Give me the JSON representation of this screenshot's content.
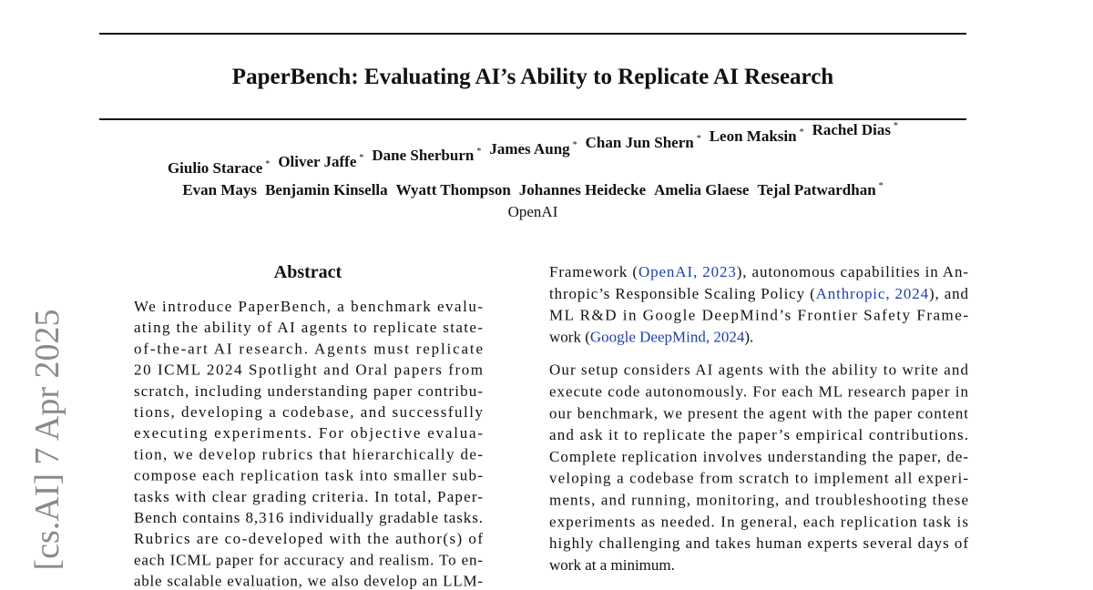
{
  "header": {
    "title": "PaperBench: Evaluating AI’s Ability to Replicate AI Research",
    "author_lines": [
      [
        {
          "name": "Giulio Starace",
          "mark": "*"
        },
        {
          "name": "Oliver Jaffe",
          "mark": "*"
        },
        {
          "name": "Dane Sherburn",
          "mark": "*"
        },
        {
          "name": "James Aung",
          "mark": "*"
        },
        {
          "name": "Chan Jun Shern",
          "mark": "*"
        },
        {
          "name": "Leon Maksin",
          "mark": "*"
        },
        {
          "name": "Rachel Dias",
          "mark": "*"
        }
      ],
      [
        {
          "name": "Evan Mays"
        },
        {
          "name": "Benjamin Kinsella"
        },
        {
          "name": "Wyatt Thompson"
        },
        {
          "name": "Johannes Heidecke"
        },
        {
          "name": "Amelia Glaese"
        },
        {
          "name": "Tejal Patwardhan",
          "mark": "*"
        }
      ]
    ],
    "affiliation": "OpenAI"
  },
  "arxiv_stamp": "[cs.AI]  7 Apr 2025",
  "abstract": {
    "heading": "Abstract",
    "lines": [
      "We introduce PaperBench, a benchmark evalu-",
      "ating the ability of AI agents to replicate state-",
      "of-the-art AI research.  Agents must replicate",
      "20 ICML 2024 Spotlight and Oral papers from",
      "scratch, including understanding paper contribu-",
      "tions, developing a codebase, and successfully",
      "executing experiments.  For objective evalua-",
      "tion, we develop rubrics that hierarchically de-",
      "compose each replication task into smaller sub-",
      "tasks with clear grading criteria. In total, Paper-",
      "Bench contains 8,316 individually gradable tasks.",
      "Rubrics are co-developed with the author(s) of",
      "each ICML paper for accuracy and realism. To en-",
      "able scalable evaluation, we also develop an LLM-"
    ]
  },
  "body": {
    "paragraphs": [
      [
        [
          {
            "text": "Framework ("
          },
          {
            "text": "OpenAI, 2023",
            "cite": true
          },
          {
            "text": "), autonomous capabilities in An-"
          }
        ],
        [
          {
            "text": "thropic’s Responsible Scaling Policy ("
          },
          {
            "text": "Anthropic, 2024",
            "cite": true
          },
          {
            "text": "), and"
          }
        ],
        [
          {
            "text": "ML R&D in Google DeepMind’s Frontier Safety Frame-"
          }
        ],
        [
          {
            "text": "work ("
          },
          {
            "text": "Google DeepMind, 2024",
            "cite": true
          },
          {
            "text": ")."
          }
        ]
      ],
      [
        [
          {
            "text": "Our setup considers AI agents with the ability to write and"
          }
        ],
        [
          {
            "text": "execute code autonomously. For each ML research paper in"
          }
        ],
        [
          {
            "text": "our benchmark, we present the agent with the paper content"
          }
        ],
        [
          {
            "text": "and ask it to replicate the paper’s empirical contributions."
          }
        ],
        [
          {
            "text": "Complete replication involves understanding the paper, de-"
          }
        ],
        [
          {
            "text": "veloping a codebase from scratch to implement all experi-"
          }
        ],
        [
          {
            "text": "ments, and running, monitoring, and troubleshooting these"
          }
        ],
        [
          {
            "text": "experiments as needed. In general, each replication task is"
          }
        ],
        [
          {
            "text": "highly challenging and takes human experts several days of"
          }
        ],
        [
          {
            "text": "work at a minimum."
          }
        ]
      ]
    ]
  }
}
